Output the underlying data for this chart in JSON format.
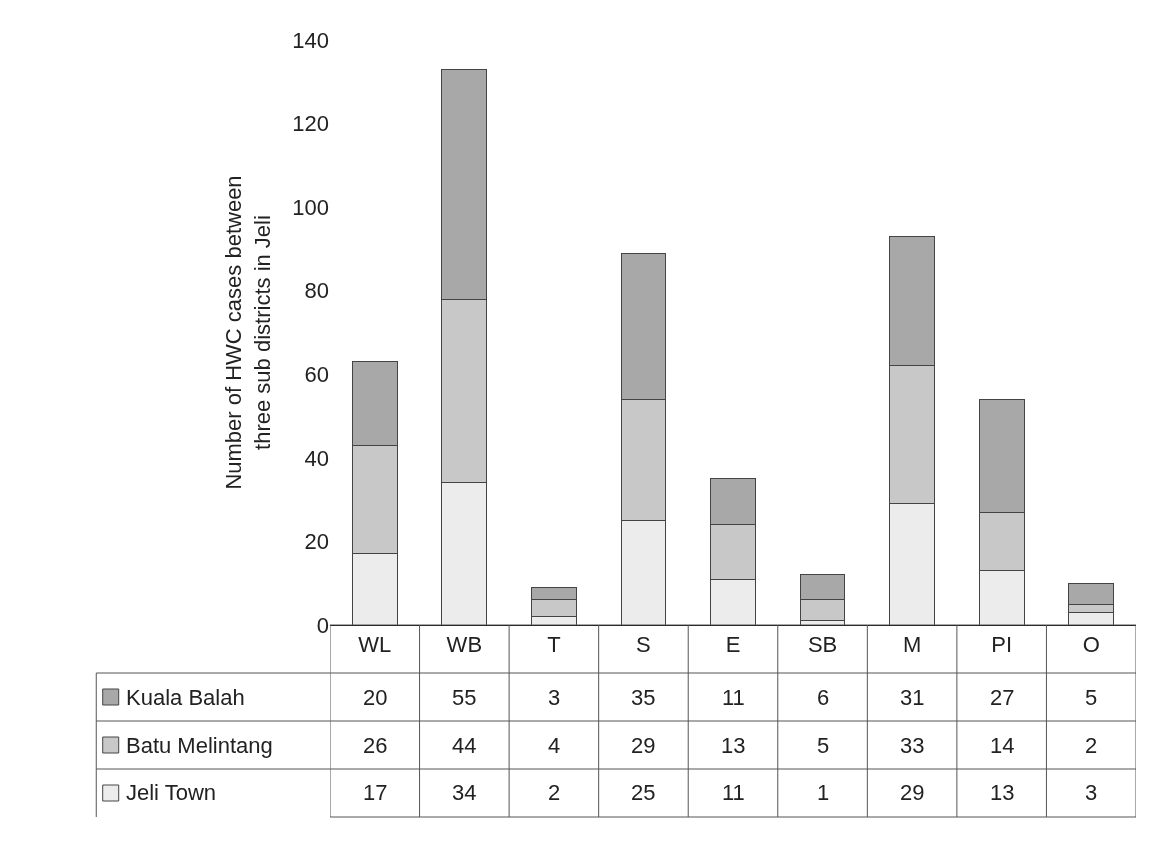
{
  "chart_data": {
    "type": "bar",
    "stacked": true,
    "ylabel": "Number of HWC cases between three sub districts in Jeli",
    "categories": [
      "WL",
      "WB",
      "T",
      "S",
      "E",
      "SB",
      "M",
      "PI",
      "O"
    ],
    "series": [
      {
        "name": "Jeli Town",
        "color": "#ececec",
        "values": [
          17,
          34,
          2,
          25,
          11,
          1,
          29,
          13,
          3
        ]
      },
      {
        "name": "Batu Melintang",
        "color": "#c8c8c8",
        "values": [
          26,
          44,
          4,
          29,
          13,
          5,
          33,
          14,
          2
        ]
      },
      {
        "name": "Kuala Balah",
        "color": "#a8a8a8",
        "values": [
          20,
          55,
          3,
          35,
          11,
          6,
          31,
          27,
          5
        ]
      }
    ],
    "ylim": [
      0,
      140
    ],
    "yticks": [
      0,
      20,
      40,
      60,
      80,
      100,
      120,
      140
    ],
    "data_labels": true,
    "legend": "bottom left"
  }
}
